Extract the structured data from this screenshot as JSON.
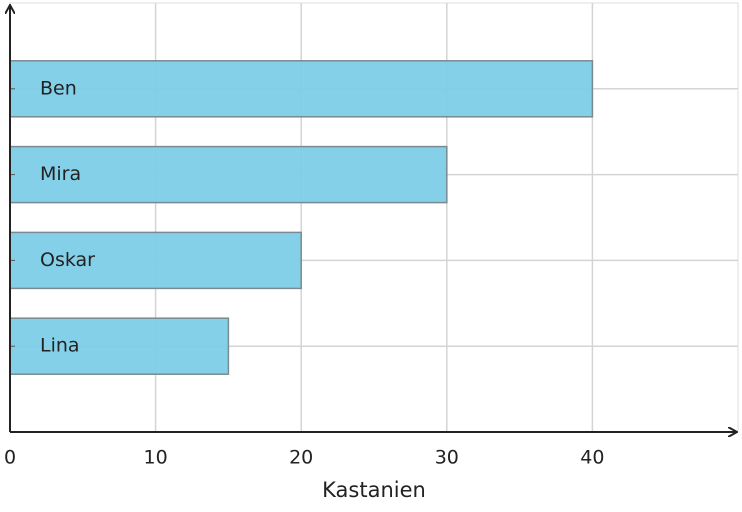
{
  "chart_data": {
    "type": "barh",
    "x_label": "Kastanien",
    "categories": [
      "Ben",
      "Mira",
      "Oskar",
      "Lina"
    ],
    "values": [
      40,
      30,
      20,
      15
    ],
    "color": "#7ecde8",
    "xlim": [
      0,
      50
    ],
    "xticks": [
      0,
      10,
      20,
      30,
      40
    ],
    "grid": true
  }
}
